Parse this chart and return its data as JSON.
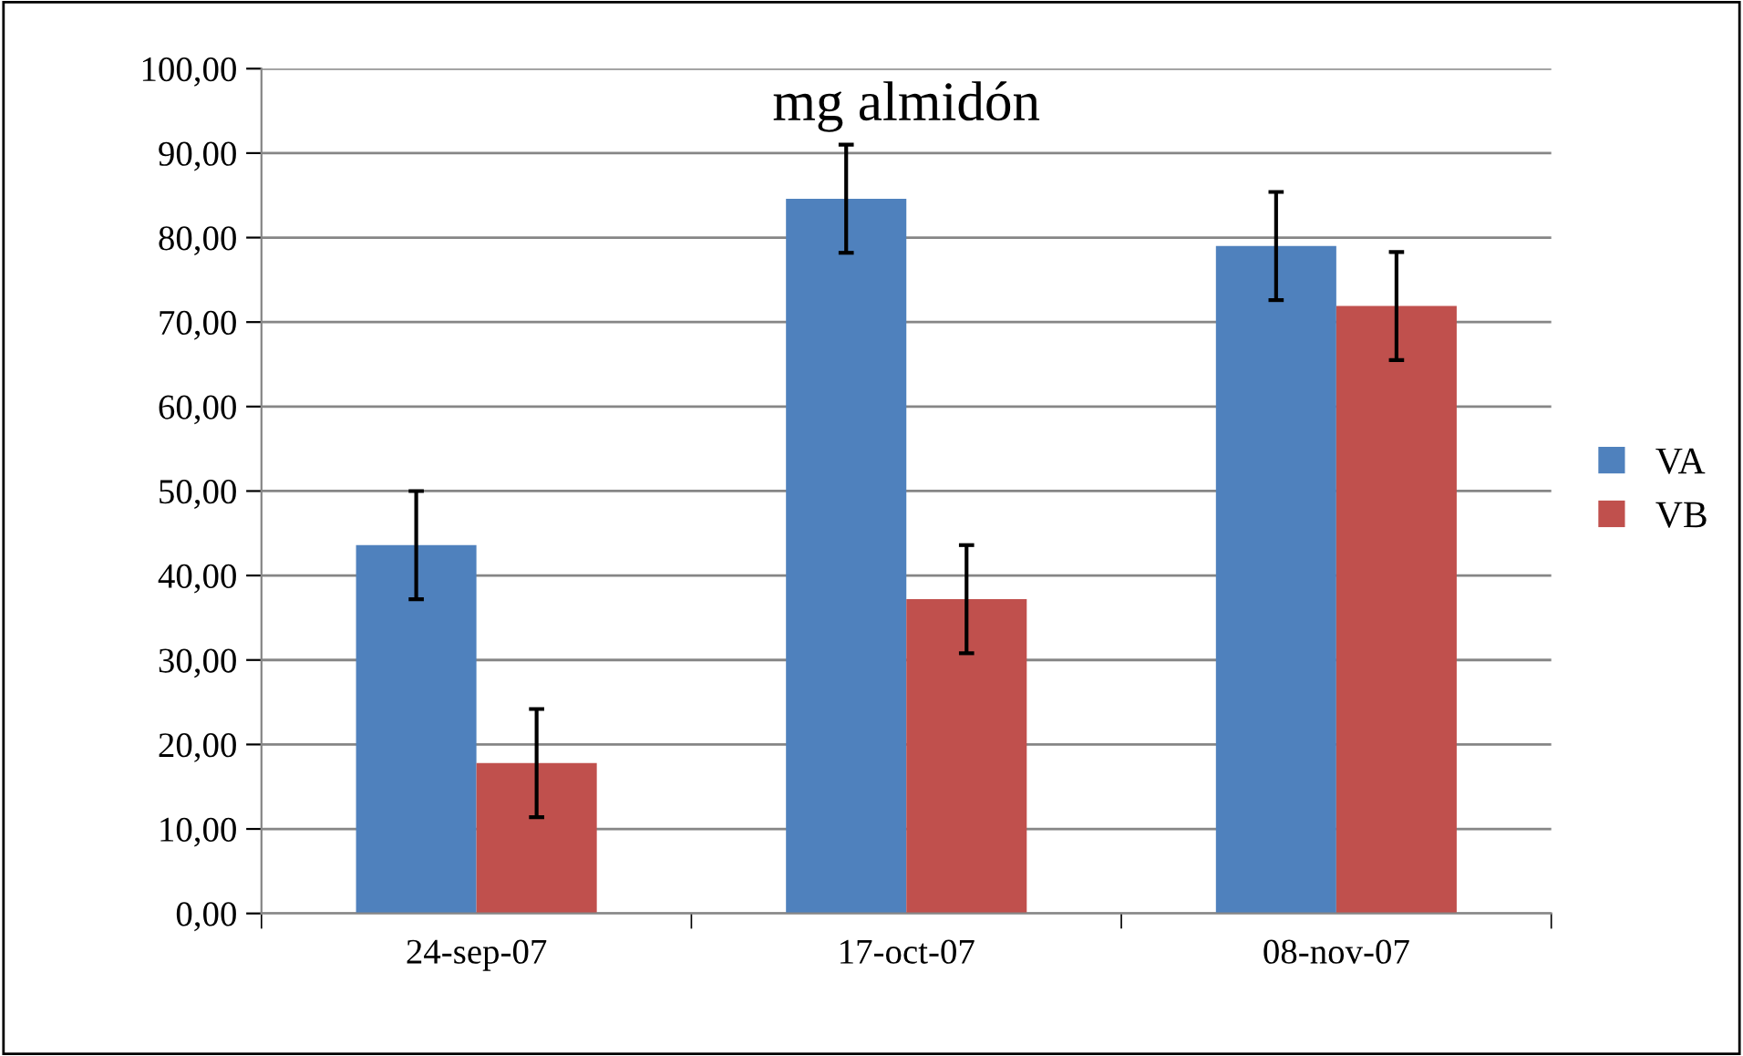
{
  "chart_data": {
    "type": "bar",
    "title": "mg almidón",
    "categories": [
      "24-sep-07",
      "17-oct-07",
      "08-nov-07"
    ],
    "series": [
      {
        "name": "VA",
        "color": "#4f81bd",
        "values": [
          43.6,
          84.6,
          79.0
        ],
        "errors": [
          6.4,
          6.4,
          6.4
        ]
      },
      {
        "name": "VB",
        "color": "#c0504d",
        "values": [
          17.8,
          37.2,
          71.9
        ],
        "errors": [
          6.4,
          6.4,
          6.4
        ]
      }
    ],
    "ylim": [
      0,
      100
    ],
    "yticks": [
      {
        "value": 0,
        "label": "0,00"
      },
      {
        "value": 10,
        "label": "10,00"
      },
      {
        "value": 20,
        "label": "20,00"
      },
      {
        "value": 30,
        "label": "30,00"
      },
      {
        "value": 40,
        "label": "40,00"
      },
      {
        "value": 50,
        "label": "50,00"
      },
      {
        "value": 60,
        "label": "60,00"
      },
      {
        "value": 70,
        "label": "70,00"
      },
      {
        "value": 80,
        "label": "80,00"
      },
      {
        "value": 90,
        "label": "90,00"
      },
      {
        "value": 100,
        "label": "100,00"
      }
    ],
    "grid": "y",
    "legend": "right"
  }
}
